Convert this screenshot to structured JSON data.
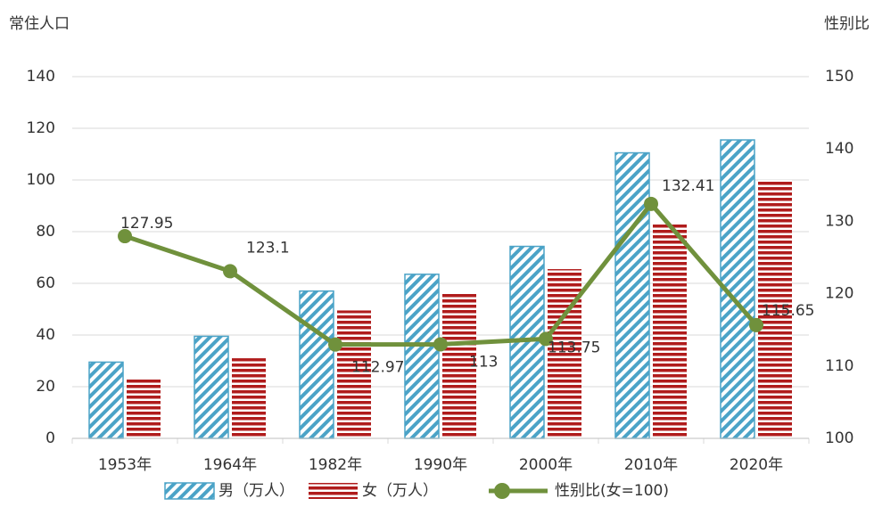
{
  "chart_data": {
    "type": "bar_line",
    "y_label": "常住人口",
    "y2_label": "性别比",
    "categories": [
      "1953年",
      "1964年",
      "1982年",
      "1990年",
      "2000年",
      "2010年",
      "2020年"
    ],
    "series": [
      {
        "name": "男（万人）",
        "color": "#4ba3c7",
        "values": [
          29.5,
          39.5,
          57,
          63.5,
          74.3,
          110.5,
          115.5
        ]
      },
      {
        "name": "女（万人）",
        "color": "#b01c1c",
        "values": [
          23,
          31,
          49.5,
          56,
          65.5,
          83.5,
          100
        ]
      },
      {
        "name": "性别比(女=100)",
        "color": "#70913c",
        "axis": "y2",
        "values": [
          127.95,
          123.1,
          112.97,
          113,
          113.75,
          132.41,
          115.65
        ]
      }
    ],
    "ylim": [
      0,
      140
    ],
    "yticks": [
      0,
      20,
      40,
      60,
      80,
      100,
      120,
      140
    ],
    "y2lim": [
      100,
      150
    ],
    "y2ticks": [
      100,
      110,
      120,
      130,
      140,
      150
    ],
    "grid": true
  }
}
